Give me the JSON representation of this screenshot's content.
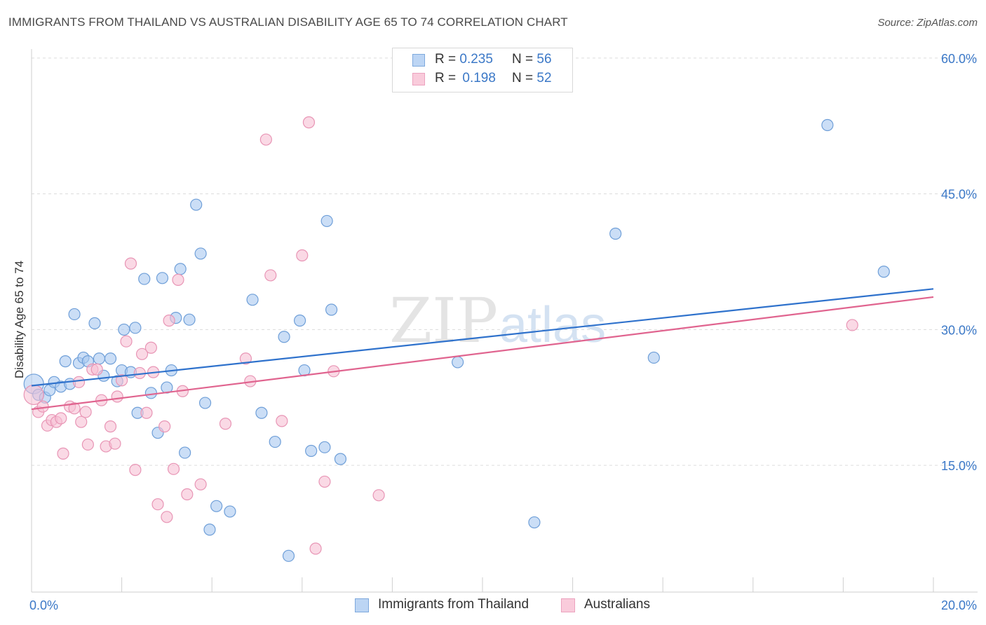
{
  "title": "IMMIGRANTS FROM THAILAND VS AUSTRALIAN DISABILITY AGE 65 TO 74 CORRELATION CHART",
  "source": "Source: ZipAtlas.com",
  "watermark": {
    "zip": "ZIP",
    "atlas": "atlas"
  },
  "legend_stats": [
    {
      "r_label": "R =",
      "r_value": "0.235",
      "n_label": "N =",
      "n_value": "56"
    },
    {
      "r_label": "R =",
      "r_value": "0.198",
      "n_label": "N =",
      "n_value": "52"
    }
  ],
  "chart_data": {
    "type": "scatter",
    "title": "IMMIGRANTS FROM THAILAND VS AUSTRALIAN DISABILITY AGE 65 TO 74 CORRELATION CHART",
    "xlabel": "",
    "ylabel": "Disability Age 65 to 74",
    "xlim": [
      0,
      20
    ],
    "ylim": [
      1,
      61
    ],
    "x_tick_labels": [
      "0.0%",
      "20.0%"
    ],
    "y_ticks": [
      15,
      30,
      45,
      60
    ],
    "y_tick_labels": [
      "15.0%",
      "30.0%",
      "45.0%",
      "60.0%"
    ],
    "grid": "horizontal dashed",
    "legend_position": "bottom-center",
    "series": [
      {
        "name": "Immigrants from Thailand",
        "color": "#a9c8f0",
        "edge": "#6f9fd8",
        "line_color": "#2f72cc",
        "trend": [
          [
            0,
            23.8
          ],
          [
            20,
            34.5
          ]
        ],
        "points": [
          [
            0.05,
            24.0
          ],
          [
            0.15,
            22.8
          ],
          [
            0.3,
            22.5
          ],
          [
            0.4,
            23.3
          ],
          [
            0.5,
            24.2
          ],
          [
            0.65,
            23.7
          ],
          [
            0.75,
            26.5
          ],
          [
            0.85,
            24.0
          ],
          [
            0.95,
            31.7
          ],
          [
            1.05,
            26.3
          ],
          [
            1.15,
            26.9
          ],
          [
            1.25,
            26.5
          ],
          [
            1.4,
            30.7
          ],
          [
            1.5,
            26.8
          ],
          [
            1.6,
            24.9
          ],
          [
            1.75,
            26.8
          ],
          [
            1.9,
            24.3
          ],
          [
            2.0,
            25.5
          ],
          [
            2.05,
            30.0
          ],
          [
            2.2,
            25.3
          ],
          [
            2.3,
            30.2
          ],
          [
            2.35,
            20.8
          ],
          [
            2.5,
            35.6
          ],
          [
            2.65,
            23.0
          ],
          [
            2.8,
            18.6
          ],
          [
            2.9,
            35.7
          ],
          [
            3.0,
            23.6
          ],
          [
            3.1,
            25.5
          ],
          [
            3.2,
            31.3
          ],
          [
            3.3,
            36.7
          ],
          [
            3.4,
            16.4
          ],
          [
            3.5,
            31.1
          ],
          [
            3.65,
            43.8
          ],
          [
            3.75,
            38.4
          ],
          [
            3.85,
            21.9
          ],
          [
            3.95,
            7.9
          ],
          [
            4.1,
            10.5
          ],
          [
            4.4,
            9.9
          ],
          [
            4.9,
            33.3
          ],
          [
            5.1,
            20.8
          ],
          [
            5.4,
            17.6
          ],
          [
            5.6,
            29.2
          ],
          [
            5.7,
            5.0
          ],
          [
            5.95,
            31.0
          ],
          [
            6.05,
            25.5
          ],
          [
            6.2,
            16.6
          ],
          [
            6.5,
            17.0
          ],
          [
            6.55,
            42.0
          ],
          [
            6.65,
            32.2
          ],
          [
            6.85,
            15.7
          ],
          [
            9.45,
            26.4
          ],
          [
            11.15,
            8.7
          ],
          [
            12.95,
            40.6
          ],
          [
            13.8,
            26.9
          ],
          [
            17.65,
            52.6
          ],
          [
            18.9,
            36.4
          ]
        ]
      },
      {
        "name": "Australians",
        "color": "#f7bfd3",
        "edge": "#e895b5",
        "line_color": "#e0648f",
        "trend": [
          [
            0,
            21.2
          ],
          [
            20,
            33.6
          ]
        ],
        "points": [
          [
            0.05,
            22.8
          ],
          [
            0.15,
            20.9
          ],
          [
            0.25,
            21.5
          ],
          [
            0.35,
            19.4
          ],
          [
            0.45,
            20.0
          ],
          [
            0.55,
            19.8
          ],
          [
            0.65,
            20.2
          ],
          [
            0.7,
            16.3
          ],
          [
            0.85,
            21.5
          ],
          [
            0.95,
            21.3
          ],
          [
            1.05,
            24.2
          ],
          [
            1.1,
            19.8
          ],
          [
            1.2,
            20.9
          ],
          [
            1.25,
            17.3
          ],
          [
            1.35,
            25.6
          ],
          [
            1.45,
            25.6
          ],
          [
            1.55,
            22.2
          ],
          [
            1.65,
            17.1
          ],
          [
            1.75,
            19.3
          ],
          [
            1.85,
            17.4
          ],
          [
            1.9,
            22.6
          ],
          [
            2.0,
            24.4
          ],
          [
            2.1,
            28.7
          ],
          [
            2.2,
            37.3
          ],
          [
            2.3,
            14.5
          ],
          [
            2.4,
            25.2
          ],
          [
            2.45,
            27.3
          ],
          [
            2.55,
            20.8
          ],
          [
            2.65,
            28.0
          ],
          [
            2.7,
            25.3
          ],
          [
            2.8,
            10.7
          ],
          [
            2.95,
            19.3
          ],
          [
            3.0,
            9.3
          ],
          [
            3.05,
            31.0
          ],
          [
            3.15,
            14.6
          ],
          [
            3.25,
            35.5
          ],
          [
            3.35,
            23.2
          ],
          [
            3.45,
            11.8
          ],
          [
            3.75,
            12.9
          ],
          [
            4.3,
            19.6
          ],
          [
            4.75,
            26.8
          ],
          [
            4.85,
            24.3
          ],
          [
            5.2,
            51.0
          ],
          [
            5.3,
            36.0
          ],
          [
            5.55,
            19.9
          ],
          [
            6.0,
            38.2
          ],
          [
            6.15,
            52.9
          ],
          [
            6.3,
            5.8
          ],
          [
            6.5,
            13.2
          ],
          [
            6.7,
            25.4
          ],
          [
            7.7,
            11.7
          ],
          [
            18.2,
            30.5
          ]
        ]
      }
    ]
  }
}
